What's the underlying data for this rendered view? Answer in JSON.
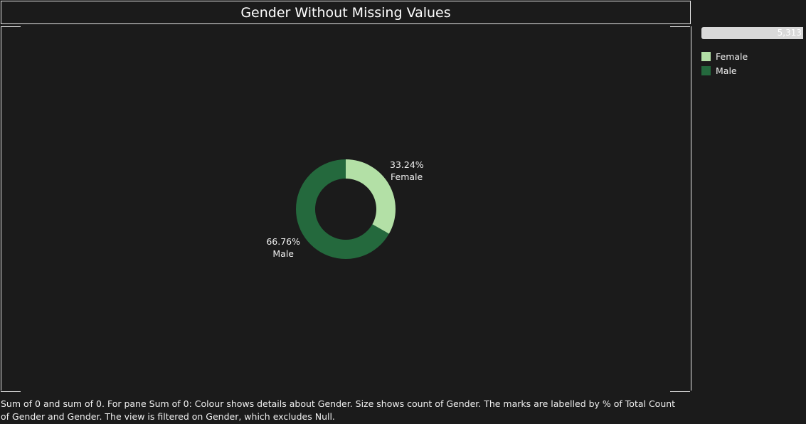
{
  "title": "Gender Without Missing Values",
  "size_legend": {
    "value_label": "5,313"
  },
  "legend": {
    "items": [
      {
        "label": "Female",
        "color": "#b3e0a6"
      },
      {
        "label": "Male",
        "color": "#24693d"
      }
    ]
  },
  "caption": "Sum of 0 and sum of 0.  For pane Sum of 0:  Colour shows details about Gender.  Size shows count of Gender.  The marks are labelled by % of Total Count of Gender and Gender. The view is filtered on Gender, which excludes Null.",
  "chart_data": {
    "type": "pie",
    "donut": true,
    "categories": [
      "Female",
      "Male"
    ],
    "values": [
      33.24,
      66.76
    ],
    "labels": [
      "33.24%",
      "66.76%"
    ],
    "colors": [
      "#b3e0a6",
      "#24693d"
    ]
  }
}
